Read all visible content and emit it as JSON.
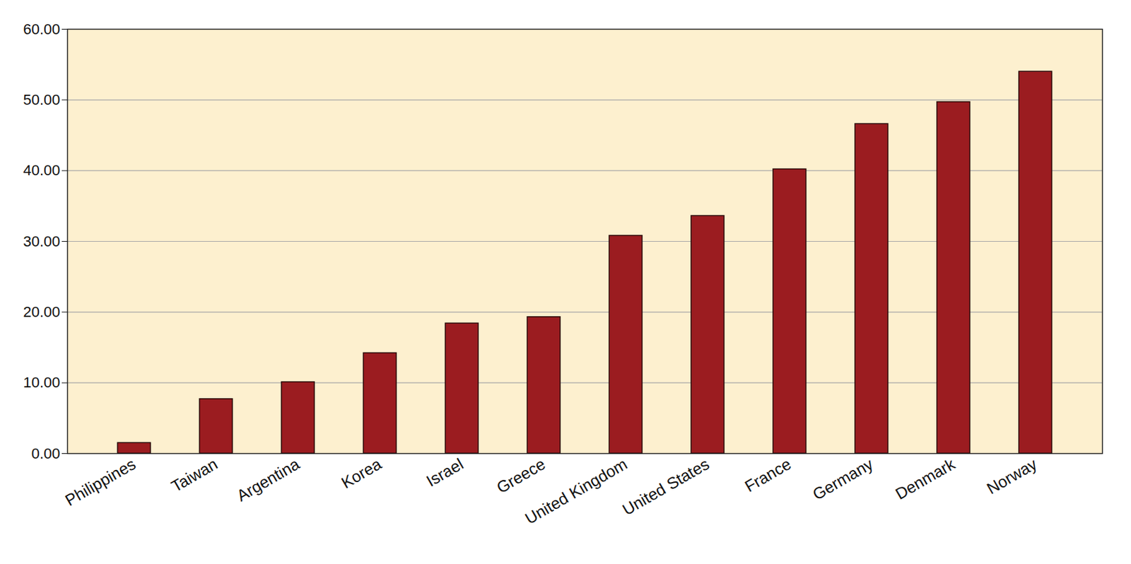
{
  "chart_data": {
    "type": "bar",
    "categories": [
      "Philippines",
      "Taiwan",
      "Argentina",
      "Korea",
      "Israel",
      "Greece",
      "United Kingdom",
      "United States",
      "France",
      "Germany",
      "Denmark",
      "Norway"
    ],
    "values": [
      1.5,
      7.7,
      10.1,
      14.2,
      18.4,
      19.3,
      30.8,
      33.6,
      40.2,
      46.6,
      49.7,
      54.0
    ],
    "color": "#9b1c20",
    "ylim": [
      0,
      60
    ],
    "yticks": [
      {
        "value": 0,
        "label": "0.00"
      },
      {
        "value": 10,
        "label": "10.00"
      },
      {
        "value": 20,
        "label": "20.00"
      },
      {
        "value": 30,
        "label": "30.00"
      },
      {
        "value": 40,
        "label": "40.00"
      },
      {
        "value": 50,
        "label": "50.00"
      },
      {
        "value": 60,
        "label": "60.00"
      }
    ],
    "grid": true
  }
}
